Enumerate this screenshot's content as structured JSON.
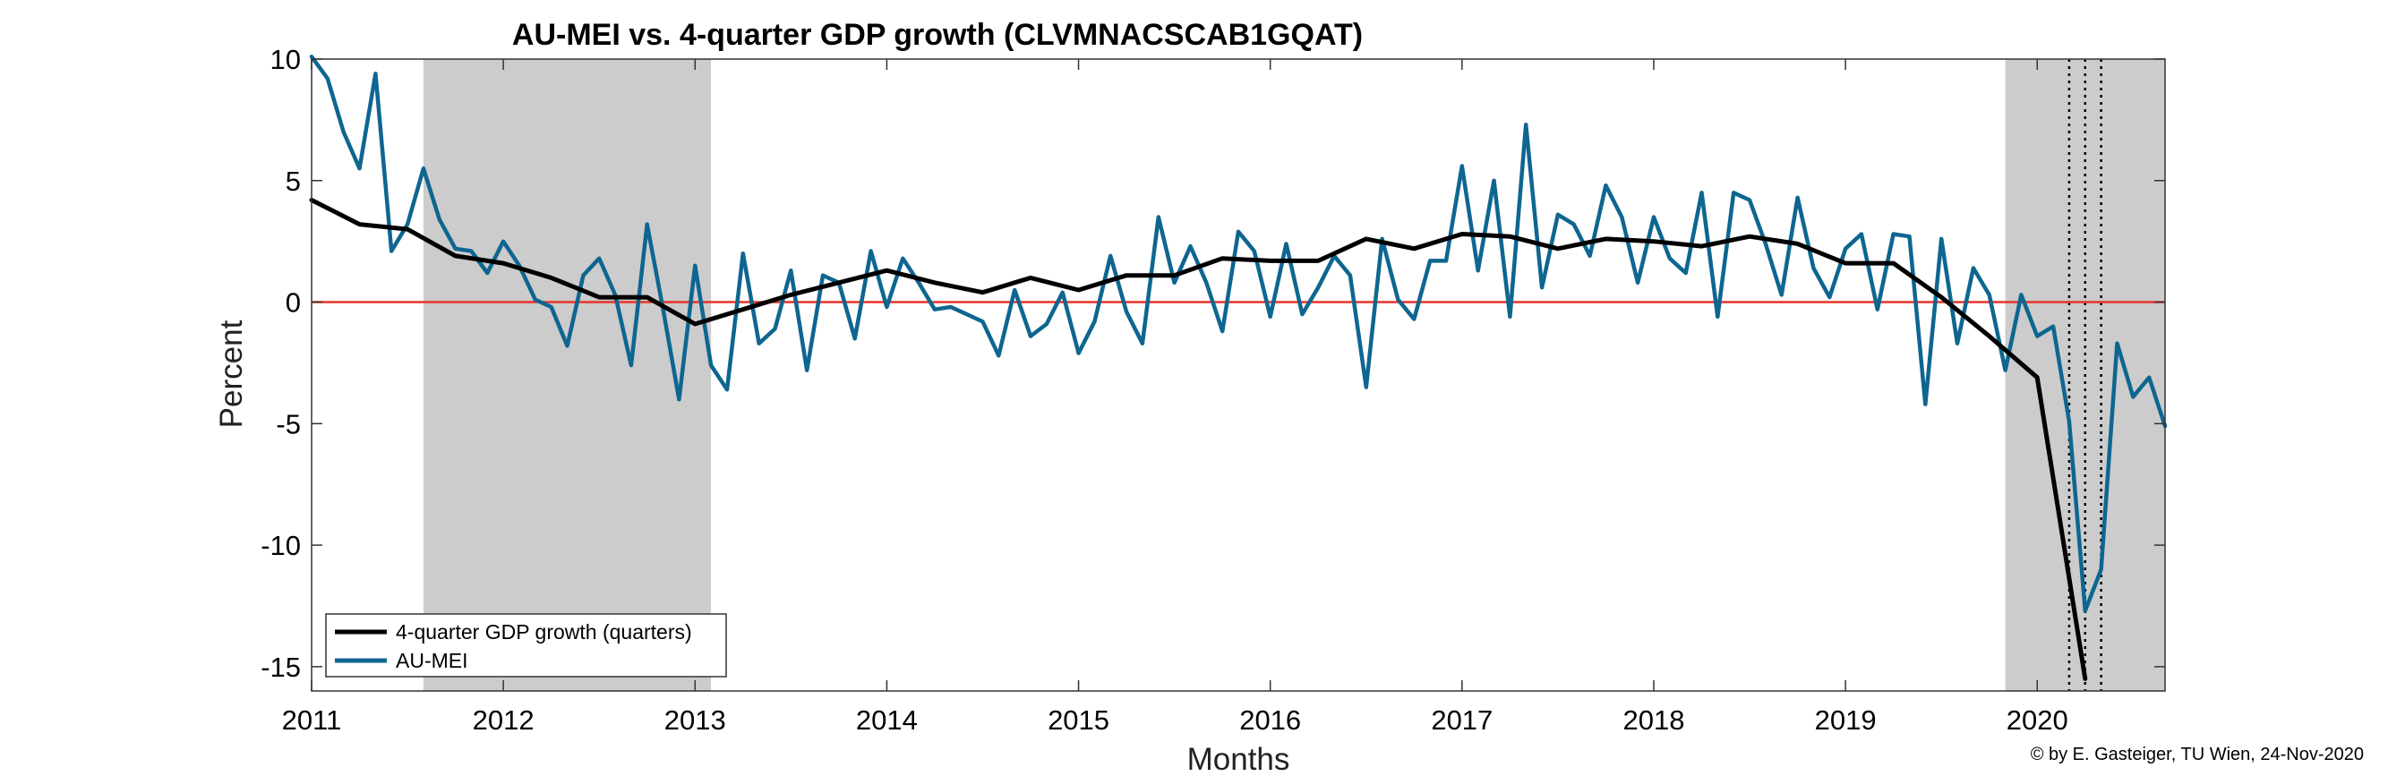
{
  "chart_data": {
    "type": "line",
    "title": "AU-MEI vs. 4-quarter GDP growth (CLVMNACSCAB1GQAT)",
    "xlabel": "Months",
    "ylabel": "Percent",
    "xlim": [
      "2011-01",
      "2020-09"
    ],
    "ylim": [
      -16,
      10
    ],
    "x_ticks": [
      "2011",
      "2012",
      "2013",
      "2014",
      "2015",
      "2016",
      "2017",
      "2018",
      "2019",
      "2020"
    ],
    "y_ticks": [
      10,
      5,
      0,
      -5,
      -10,
      -15
    ],
    "grid": false,
    "legend_position": "bottom-left",
    "zero_line": {
      "value": 0,
      "color": "#e8322b"
    },
    "recession_shading": [
      {
        "start": "2011-08",
        "end": "2013-02"
      },
      {
        "start": "2019-11",
        "end": "2020-09"
      }
    ],
    "vertical_markers": [
      "2020-03",
      "2020-04",
      "2020-05"
    ],
    "series": [
      {
        "name": "4-quarter GDP growth (quarters)",
        "color": "#000000",
        "x": [
          "2011-01",
          "2011-04",
          "2011-07",
          "2011-10",
          "2012-01",
          "2012-04",
          "2012-07",
          "2012-10",
          "2013-01",
          "2013-04",
          "2013-07",
          "2013-10",
          "2014-01",
          "2014-04",
          "2014-07",
          "2014-10",
          "2015-01",
          "2015-04",
          "2015-07",
          "2015-10",
          "2016-01",
          "2016-04",
          "2016-07",
          "2016-10",
          "2017-01",
          "2017-04",
          "2017-07",
          "2017-10",
          "2018-01",
          "2018-04",
          "2018-07",
          "2018-10",
          "2019-01",
          "2019-04",
          "2019-07",
          "2019-10",
          "2020-01",
          "2020-04"
        ],
        "values": [
          4.2,
          3.2,
          3.0,
          1.9,
          1.6,
          1.0,
          0.2,
          0.2,
          -0.9,
          -0.3,
          0.3,
          0.8,
          1.3,
          0.8,
          0.4,
          1.0,
          0.5,
          1.1,
          1.1,
          1.8,
          1.7,
          1.7,
          2.6,
          2.2,
          2.8,
          2.7,
          2.2,
          2.6,
          2.5,
          2.3,
          2.7,
          2.4,
          1.6,
          1.6,
          0.2,
          -1.4,
          -3.1,
          -15.5
        ]
      },
      {
        "name": "AU-MEI",
        "color": "#0e6690",
        "x_start": "2011-01",
        "frequency": "monthly",
        "values": [
          10.1,
          9.2,
          7.0,
          5.5,
          9.4,
          2.1,
          3.2,
          5.5,
          3.4,
          2.2,
          2.1,
          1.2,
          2.5,
          1.5,
          0.1,
          -0.2,
          -1.8,
          1.1,
          1.8,
          0.3,
          -2.6,
          3.2,
          -0.3,
          -4.0,
          1.5,
          -2.6,
          -3.6,
          2.0,
          -1.7,
          -1.1,
          1.3,
          -2.8,
          1.1,
          0.8,
          -1.5,
          2.1,
          -0.2,
          1.8,
          0.8,
          -0.3,
          -0.2,
          -0.5,
          -0.8,
          -2.2,
          0.5,
          -1.4,
          -0.9,
          0.4,
          -2.1,
          -0.8,
          1.9,
          -0.4,
          -1.7,
          3.5,
          0.8,
          2.3,
          0.8,
          -1.2,
          2.9,
          2.1,
          -0.6,
          2.4,
          -0.5,
          0.6,
          1.9,
          1.1,
          -3.5,
          2.6,
          0.1,
          -0.7,
          1.7,
          1.7,
          5.6,
          1.3,
          5.0,
          -0.6,
          7.3,
          0.6,
          3.6,
          3.2,
          1.9,
          4.8,
          3.5,
          0.8,
          3.5,
          1.8,
          1.2,
          4.5,
          -0.6,
          4.5,
          4.2,
          2.4,
          0.3,
          4.3,
          1.4,
          0.2,
          2.2,
          2.8,
          -0.3,
          2.8,
          2.7,
          -4.2,
          2.6,
          -1.7,
          1.4,
          0.3,
          -2.8,
          0.3,
          -1.4,
          -1.0,
          -4.9,
          -12.7,
          -11.0,
          -1.7,
          -3.9,
          -3.1,
          -5.1
        ]
      }
    ],
    "credit": "© by E. Gasteiger, TU Wien, 24-Nov-2020"
  }
}
